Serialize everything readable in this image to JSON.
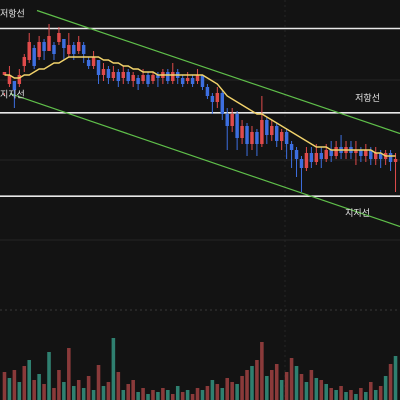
{
  "chart_data": {
    "type": "candlestick",
    "title": "",
    "xlabel": "",
    "ylabel": "",
    "grid": true,
    "ylim": [
      0,
      100
    ],
    "colors": {
      "background": "#131313",
      "up": "#e04b4b",
      "down": "#3d6fe0",
      "ma": "#f2d36b",
      "channel": "#5fbf4a",
      "level": "#e8e8e8",
      "grid": "#262626",
      "volume_up": "#8a3a3a",
      "volume_down": "#2f8070"
    },
    "levels": [
      {
        "label": "저항선",
        "value": 90.5
      },
      {
        "label": "저항선",
        "value": 62.4
      },
      {
        "label": "지지선",
        "value": 67.5
      },
      {
        "label": "지지선",
        "value": 34.6
      }
    ],
    "channel": {
      "upper": [
        {
          "x": 37,
          "y": 96.5
        },
        {
          "x": 400,
          "y": 55.5
        }
      ],
      "lower": [
        {
          "x": 10,
          "y": 68.8
        },
        {
          "x": 400,
          "y": 24.5
        }
      ]
    },
    "candles": [
      [
        0,
        75,
        76,
        69,
        68
      ],
      [
        1,
        72,
        75,
        78,
        71
      ],
      [
        2,
        73,
        70,
        73,
        64
      ],
      [
        3,
        72,
        75,
        77,
        71
      ],
      [
        4,
        78,
        81,
        82,
        76
      ],
      [
        5,
        80,
        86,
        89,
        79
      ],
      [
        6,
        84,
        78,
        85,
        77
      ],
      [
        7,
        81,
        86,
        88,
        80
      ],
      [
        8,
        86,
        83,
        87,
        80
      ],
      [
        9,
        83,
        88,
        92,
        83
      ],
      [
        10,
        85,
        82,
        86,
        80
      ],
      [
        11,
        86,
        89,
        91,
        85
      ],
      [
        12,
        87,
        84,
        87,
        80
      ],
      [
        13,
        82,
        85,
        89,
        81
      ],
      [
        14,
        85,
        82,
        86,
        80
      ],
      [
        15,
        83,
        86,
        88,
        82
      ],
      [
        16,
        85,
        82,
        86,
        79
      ],
      [
        17,
        80,
        78,
        81,
        77
      ],
      [
        18,
        78,
        81,
        83,
        77
      ],
      [
        19,
        80,
        75,
        80,
        72
      ],
      [
        20,
        75,
        77,
        79,
        73
      ],
      [
        21,
        77,
        74,
        78,
        72
      ],
      [
        22,
        74,
        76,
        78,
        73
      ],
      [
        23,
        76,
        73,
        77,
        71
      ],
      [
        24,
        74,
        76,
        78,
        72
      ],
      [
        25,
        76,
        73,
        77,
        72
      ],
      [
        26,
        73,
        75,
        76,
        71
      ],
      [
        27,
        74,
        72,
        75,
        70
      ],
      [
        28,
        73,
        75,
        77,
        72
      ],
      [
        29,
        75,
        72,
        76,
        71
      ],
      [
        30,
        73,
        75,
        76,
        72
      ],
      [
        31,
        75,
        74,
        76,
        71
      ],
      [
        32,
        74,
        76,
        77,
        72
      ],
      [
        33,
        76,
        73,
        77,
        72
      ],
      [
        34,
        73,
        76,
        79,
        72
      ],
      [
        35,
        76,
        74,
        77,
        72
      ],
      [
        36,
        74,
        72,
        75,
        71
      ],
      [
        37,
        73,
        74,
        76,
        72
      ],
      [
        38,
        74,
        72,
        75,
        71
      ],
      [
        39,
        73,
        75,
        77,
        72
      ],
      [
        40,
        75,
        71,
        75,
        70
      ],
      [
        41,
        71,
        68,
        72,
        67
      ],
      [
        42,
        68,
        66,
        69,
        62
      ],
      [
        43,
        66,
        69,
        71,
        64
      ],
      [
        44,
        69,
        62,
        70,
        60
      ],
      [
        45,
        62,
        58,
        64,
        50
      ],
      [
        46,
        58,
        62,
        64,
        56
      ],
      [
        47,
        62,
        54,
        63,
        50
      ],
      [
        48,
        54,
        58,
        60,
        52
      ],
      [
        49,
        58,
        52,
        59,
        48
      ],
      [
        50,
        52,
        56,
        58,
        50
      ],
      [
        51,
        56,
        52,
        57,
        48
      ],
      [
        52,
        52,
        60,
        68,
        51
      ],
      [
        53,
        60,
        55,
        61,
        52
      ],
      [
        54,
        55,
        58,
        60,
        53
      ],
      [
        55,
        58,
        53,
        59,
        51
      ],
      [
        56,
        53,
        56,
        57,
        50
      ],
      [
        57,
        56,
        52,
        57,
        47
      ],
      [
        58,
        52,
        50,
        53,
        44
      ],
      [
        59,
        50,
        47,
        51,
        41
      ],
      [
        60,
        47,
        44,
        48,
        36
      ],
      [
        61,
        44,
        49,
        51,
        43
      ],
      [
        62,
        49,
        46,
        51,
        44
      ],
      [
        63,
        46,
        49,
        52,
        45
      ],
      [
        64,
        49,
        47,
        51,
        44
      ],
      [
        65,
        47,
        50,
        52,
        46
      ],
      [
        66,
        50,
        48,
        53,
        46
      ],
      [
        67,
        48,
        51,
        53,
        47
      ],
      [
        68,
        51,
        49,
        55,
        47
      ],
      [
        69,
        49,
        51,
        53,
        47
      ],
      [
        70,
        51,
        49,
        53,
        47
      ],
      [
        71,
        49,
        50,
        53,
        45
      ],
      [
        72,
        50,
        48,
        51,
        46
      ],
      [
        73,
        48,
        50,
        52,
        46
      ],
      [
        74,
        50,
        47,
        51,
        45
      ],
      [
        75,
        47,
        49,
        51,
        45
      ],
      [
        76,
        49,
        47,
        50,
        44
      ],
      [
        77,
        47,
        49,
        50,
        45
      ],
      [
        78,
        49,
        46,
        50,
        43
      ],
      [
        79,
        46,
        47,
        49,
        36
      ]
    ],
    "ma": [
      75,
      75,
      74,
      74,
      75,
      75,
      76,
      77,
      77,
      78,
      79,
      79,
      80,
      81,
      81,
      81,
      81,
      81,
      81,
      81,
      80,
      80,
      79,
      79,
      78,
      78,
      77,
      77,
      76,
      76,
      76,
      75,
      75,
      75,
      75,
      75,
      75,
      75,
      75,
      75,
      75,
      74,
      73,
      72,
      70,
      68,
      67,
      66,
      65,
      64,
      63,
      62,
      62,
      61,
      60,
      59,
      58,
      57,
      56,
      55,
      54,
      53,
      52,
      51,
      51,
      51,
      50,
      50,
      50,
      50,
      50,
      50,
      50,
      50,
      50,
      49,
      49,
      48,
      48,
      48
    ],
    "volumes": [
      [
        0,
        28,
        1
      ],
      [
        1,
        22,
        0
      ],
      [
        2,
        30,
        1
      ],
      [
        3,
        18,
        0
      ],
      [
        4,
        34,
        1
      ],
      [
        5,
        40,
        0
      ],
      [
        6,
        20,
        1
      ],
      [
        7,
        26,
        0
      ],
      [
        8,
        16,
        1
      ],
      [
        9,
        48,
        0
      ],
      [
        10,
        12,
        1
      ],
      [
        11,
        30,
        1
      ],
      [
        12,
        18,
        0
      ],
      [
        13,
        52,
        1
      ],
      [
        14,
        14,
        0
      ],
      [
        15,
        20,
        1
      ],
      [
        16,
        12,
        0
      ],
      [
        17,
        24,
        1
      ],
      [
        18,
        10,
        0
      ],
      [
        19,
        35,
        1
      ],
      [
        20,
        14,
        0
      ],
      [
        21,
        18,
        1
      ],
      [
        22,
        62,
        0
      ],
      [
        23,
        28,
        1
      ],
      [
        24,
        10,
        0
      ],
      [
        25,
        16,
        1
      ],
      [
        26,
        20,
        1
      ],
      [
        27,
        8,
        0
      ],
      [
        28,
        12,
        1
      ],
      [
        29,
        6,
        0
      ],
      [
        30,
        10,
        1
      ],
      [
        31,
        8,
        0
      ],
      [
        32,
        12,
        1
      ],
      [
        33,
        10,
        0
      ],
      [
        34,
        6,
        1
      ],
      [
        35,
        14,
        0
      ],
      [
        36,
        8,
        1
      ],
      [
        37,
        10,
        0
      ],
      [
        38,
        6,
        1
      ],
      [
        39,
        12,
        1
      ],
      [
        40,
        10,
        0
      ],
      [
        41,
        14,
        1
      ],
      [
        42,
        20,
        0
      ],
      [
        43,
        16,
        1
      ],
      [
        44,
        12,
        0
      ],
      [
        45,
        22,
        1
      ],
      [
        46,
        18,
        1
      ],
      [
        47,
        16,
        0
      ],
      [
        48,
        24,
        1
      ],
      [
        49,
        30,
        1
      ],
      [
        50,
        34,
        0
      ],
      [
        51,
        40,
        1
      ],
      [
        52,
        58,
        1
      ],
      [
        53,
        24,
        0
      ],
      [
        54,
        30,
        1
      ],
      [
        55,
        36,
        1
      ],
      [
        56,
        20,
        0
      ],
      [
        57,
        28,
        1
      ],
      [
        58,
        42,
        1
      ],
      [
        59,
        34,
        0
      ],
      [
        60,
        26,
        1
      ],
      [
        61,
        18,
        0
      ],
      [
        62,
        30,
        1
      ],
      [
        63,
        22,
        0
      ],
      [
        64,
        20,
        1
      ],
      [
        65,
        16,
        0
      ],
      [
        66,
        12,
        1
      ],
      [
        67,
        10,
        0
      ],
      [
        68,
        14,
        1
      ],
      [
        69,
        8,
        0
      ],
      [
        70,
        10,
        1
      ],
      [
        71,
        6,
        0
      ],
      [
        72,
        12,
        1
      ],
      [
        73,
        8,
        0
      ],
      [
        74,
        18,
        1
      ],
      [
        75,
        10,
        0
      ],
      [
        76,
        14,
        1
      ],
      [
        77,
        24,
        0
      ],
      [
        78,
        36,
        1
      ],
      [
        79,
        44,
        0
      ]
    ]
  }
}
